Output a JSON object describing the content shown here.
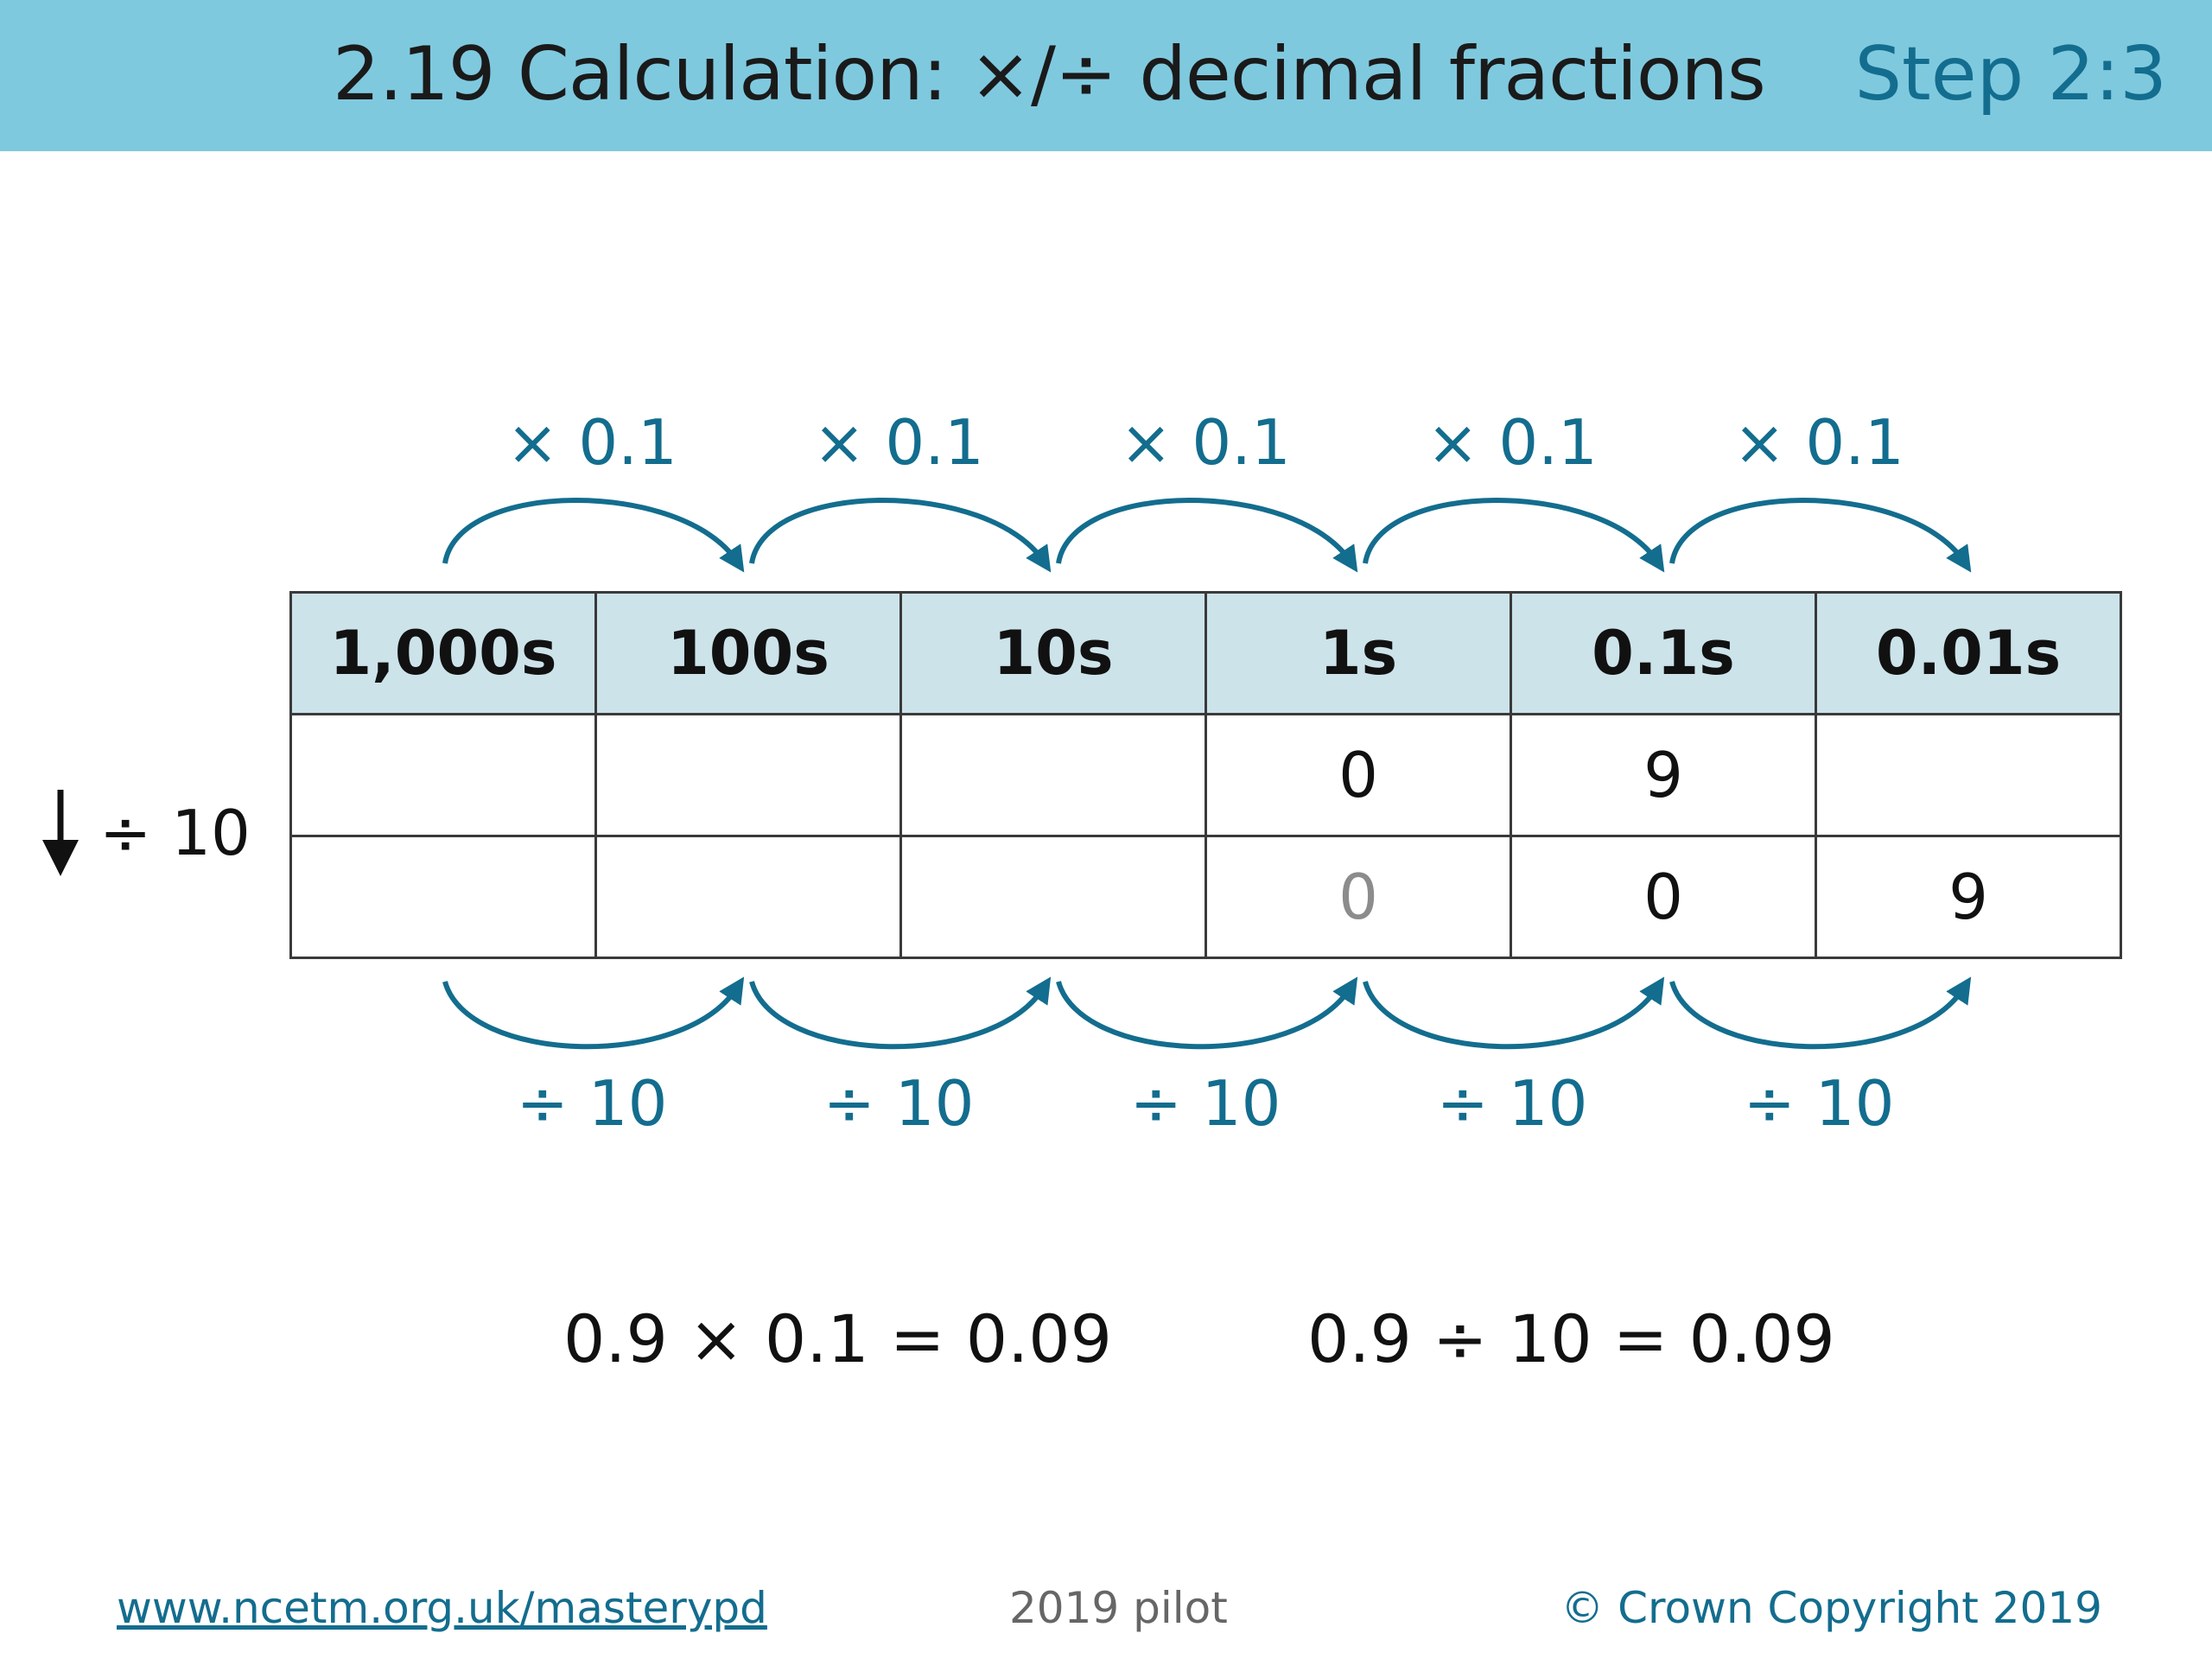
{
  "header": {
    "title": "2.19 Calculation: ×/÷ decimal fractions",
    "step": "Step 2:3"
  },
  "colors": {
    "header_bg": "#7fc9df",
    "accent": "#136d8e",
    "table_header_bg": "#cce3ea"
  },
  "top_operations": [
    "× 0.1",
    "× 0.1",
    "× 0.1",
    "× 0.1",
    "× 0.1"
  ],
  "bottom_operations": [
    "÷ 10",
    "÷ 10",
    "÷ 10",
    "÷ 10",
    "÷ 10"
  ],
  "table": {
    "headers": [
      "1,000s",
      "100s",
      "10s",
      "1s",
      "0.1s",
      "0.01s"
    ],
    "rows": [
      [
        "",
        "",
        "",
        "0",
        "9",
        ""
      ],
      [
        "",
        "",
        "",
        "0",
        "0",
        "9"
      ]
    ]
  },
  "side_label": {
    "operation": "÷ 10",
    "icon": "down-arrow-icon"
  },
  "equations": [
    "0.9 × 0.1 = 0.09",
    "0.9 ÷ 10 = 0.09"
  ],
  "footer": {
    "link": "www.ncetm.org.uk/masterypd",
    "center": "2019 pilot",
    "copyright": "© Crown Copyright 2019"
  }
}
